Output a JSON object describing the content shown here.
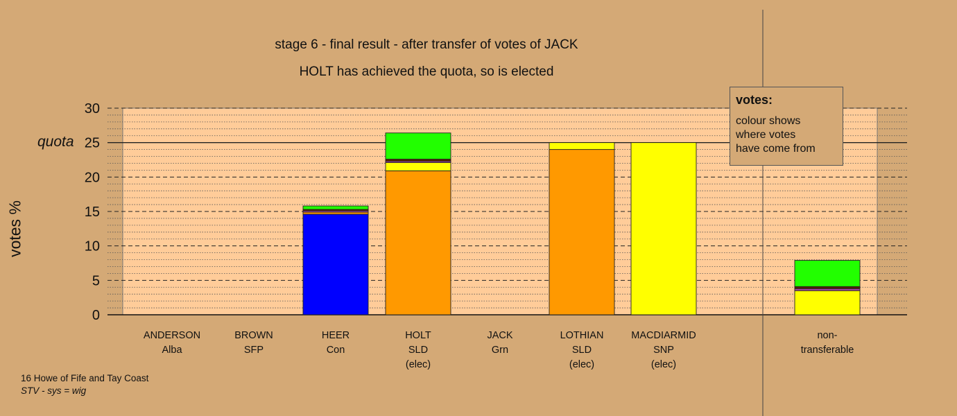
{
  "titles": {
    "line1": "stage 6 - final result - after transfer of votes of JACK",
    "line2": "HOLT has achieved the quota, so is elected"
  },
  "legend": {
    "title": "votes:",
    "lines": [
      "colour shows",
      "where votes",
      "have come from"
    ]
  },
  "footer": {
    "constituency": "16 Howe of Fife and Tay Coast",
    "system": "STV - sys = wig"
  },
  "chart_data": {
    "type": "bar",
    "stacked": true,
    "title": "stage 6 - final result - after transfer of votes of JACK",
    "ylabel": "votes %",
    "ylim": [
      0,
      30
    ],
    "yticks": [
      0,
      5,
      10,
      15,
      20,
      25,
      30
    ],
    "quota": 25,
    "quota_label": "quota",
    "categories": [
      {
        "name": "ANDERSON",
        "party": "Alba",
        "note": ""
      },
      {
        "name": "BROWN",
        "party": "SFP",
        "note": ""
      },
      {
        "name": "HEER",
        "party": "Con",
        "note": ""
      },
      {
        "name": "HOLT",
        "party": "SLD",
        "note": "(elec)"
      },
      {
        "name": "JACK",
        "party": "Grn",
        "note": ""
      },
      {
        "name": "LOTHIAN",
        "party": "SLD",
        "note": "(elec)"
      },
      {
        "name": "MACDIARMID",
        "party": "SNP",
        "note": "(elec)"
      },
      {
        "name": "non-",
        "party": "transferable",
        "note": ""
      }
    ],
    "stacks": [
      [],
      [],
      [
        {
          "color": "#0000ff",
          "value": 14.6
        },
        {
          "color": "#ff9900",
          "value": 0.3
        },
        {
          "color": "#aa44aa",
          "value": 0.2
        },
        {
          "color": "#552200",
          "value": 0.2
        },
        {
          "color": "#22ff00",
          "value": 0.5
        }
      ],
      [
        {
          "color": "#ff9900",
          "value": 20.9
        },
        {
          "color": "#ffff00",
          "value": 1.2
        },
        {
          "color": "#aa44aa",
          "value": 0.2
        },
        {
          "color": "#552200",
          "value": 0.3
        },
        {
          "color": "#22ff00",
          "value": 3.8
        }
      ],
      [],
      [
        {
          "color": "#ff9900",
          "value": 24.0
        },
        {
          "color": "#ffff00",
          "value": 1.0
        }
      ],
      [
        {
          "color": "#ffff00",
          "value": 25.0
        }
      ],
      [
        {
          "color": "#ffff00",
          "value": 3.5
        },
        {
          "color": "#aa44aa",
          "value": 0.3
        },
        {
          "color": "#552200",
          "value": 0.3
        },
        {
          "color": "#22ff00",
          "value": 3.8
        }
      ]
    ],
    "plot_background": "#ffcc99",
    "page_background": "#d4a976"
  }
}
